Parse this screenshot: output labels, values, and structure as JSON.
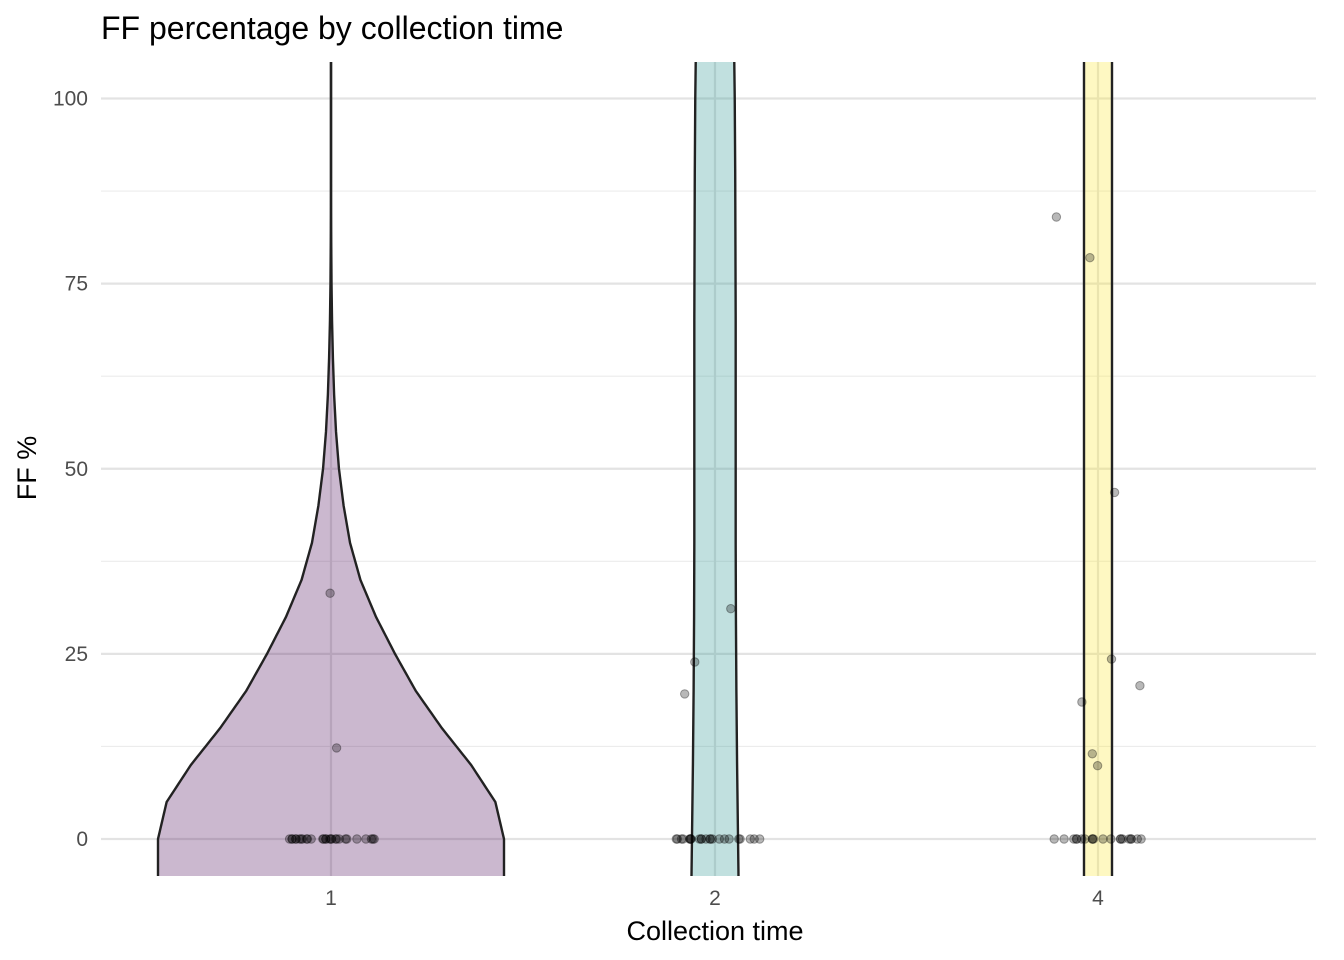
{
  "chart_data": {
    "type": "violin",
    "title": "FF percentage by collection time",
    "xlabel": "Collection time",
    "ylabel": "FF %",
    "categories": [
      "1",
      "2",
      "4"
    ],
    "ylim": [
      -5,
      105
    ],
    "yticks": [
      0,
      25,
      50,
      75,
      100
    ],
    "grid": true,
    "legend": "none",
    "colors": {
      "1": "#440154",
      "2": "#21908C",
      "4": "#FDE725",
      "fill_opacity": 0.28,
      "outline": "#222222",
      "grid_major": "#e3e3e3",
      "grid_minor": "#ececec",
      "points": "#000000"
    },
    "violins": [
      {
        "category": "1",
        "density": [
          [
            -5,
            1.0
          ],
          [
            0,
            1.0
          ],
          [
            5,
            0.95
          ],
          [
            10,
            0.81
          ],
          [
            15,
            0.64
          ],
          [
            20,
            0.49
          ],
          [
            25,
            0.37
          ],
          [
            30,
            0.26
          ],
          [
            35,
            0.17
          ],
          [
            40,
            0.11
          ],
          [
            45,
            0.073
          ],
          [
            50,
            0.046
          ],
          [
            55,
            0.029
          ],
          [
            60,
            0.018
          ],
          [
            65,
            0.011
          ],
          [
            70,
            0.006
          ],
          [
            75,
            0.003
          ],
          [
            80,
            0.0015
          ],
          [
            85,
            0.0005
          ],
          [
            90,
            0
          ],
          [
            105,
            0
          ]
        ]
      },
      {
        "category": "2",
        "density": [
          [
            -5,
            1.0
          ],
          [
            0,
            0.98
          ],
          [
            10,
            0.94
          ],
          [
            20,
            0.91
          ],
          [
            30,
            0.89
          ],
          [
            40,
            0.88
          ],
          [
            50,
            0.88
          ],
          [
            60,
            0.88
          ],
          [
            70,
            0.88
          ],
          [
            80,
            0.87
          ],
          [
            90,
            0.86
          ],
          [
            100,
            0.84
          ],
          [
            105,
            0.82
          ]
        ]
      },
      {
        "category": "4",
        "density": [
          [
            -5,
            1.0
          ],
          [
            105,
            1.0
          ]
        ]
      }
    ],
    "points": [
      {
        "category": "1",
        "values": [
          33.2,
          12.3,
          0,
          0,
          0,
          0,
          0,
          0,
          0,
          0,
          0,
          0,
          0,
          0,
          0,
          0,
          0,
          0,
          0,
          0,
          0,
          0,
          0,
          0,
          0,
          0,
          0,
          0,
          0,
          0
        ]
      },
      {
        "category": "2",
        "values": [
          31.1,
          23.9,
          19.6,
          0,
          0,
          0,
          0,
          0,
          0,
          0,
          0,
          0,
          0,
          0,
          0,
          0,
          0,
          0,
          0,
          0,
          0,
          0,
          0,
          0,
          0,
          0
        ]
      },
      {
        "category": "4",
        "values": [
          84.0,
          78.5,
          46.8,
          24.3,
          20.7,
          18.5,
          11.5,
          9.9,
          0,
          0,
          0,
          0,
          0,
          0,
          0,
          0,
          0,
          0,
          0,
          0,
          0,
          0,
          0,
          0,
          0,
          0,
          0,
          0
        ]
      }
    ]
  }
}
